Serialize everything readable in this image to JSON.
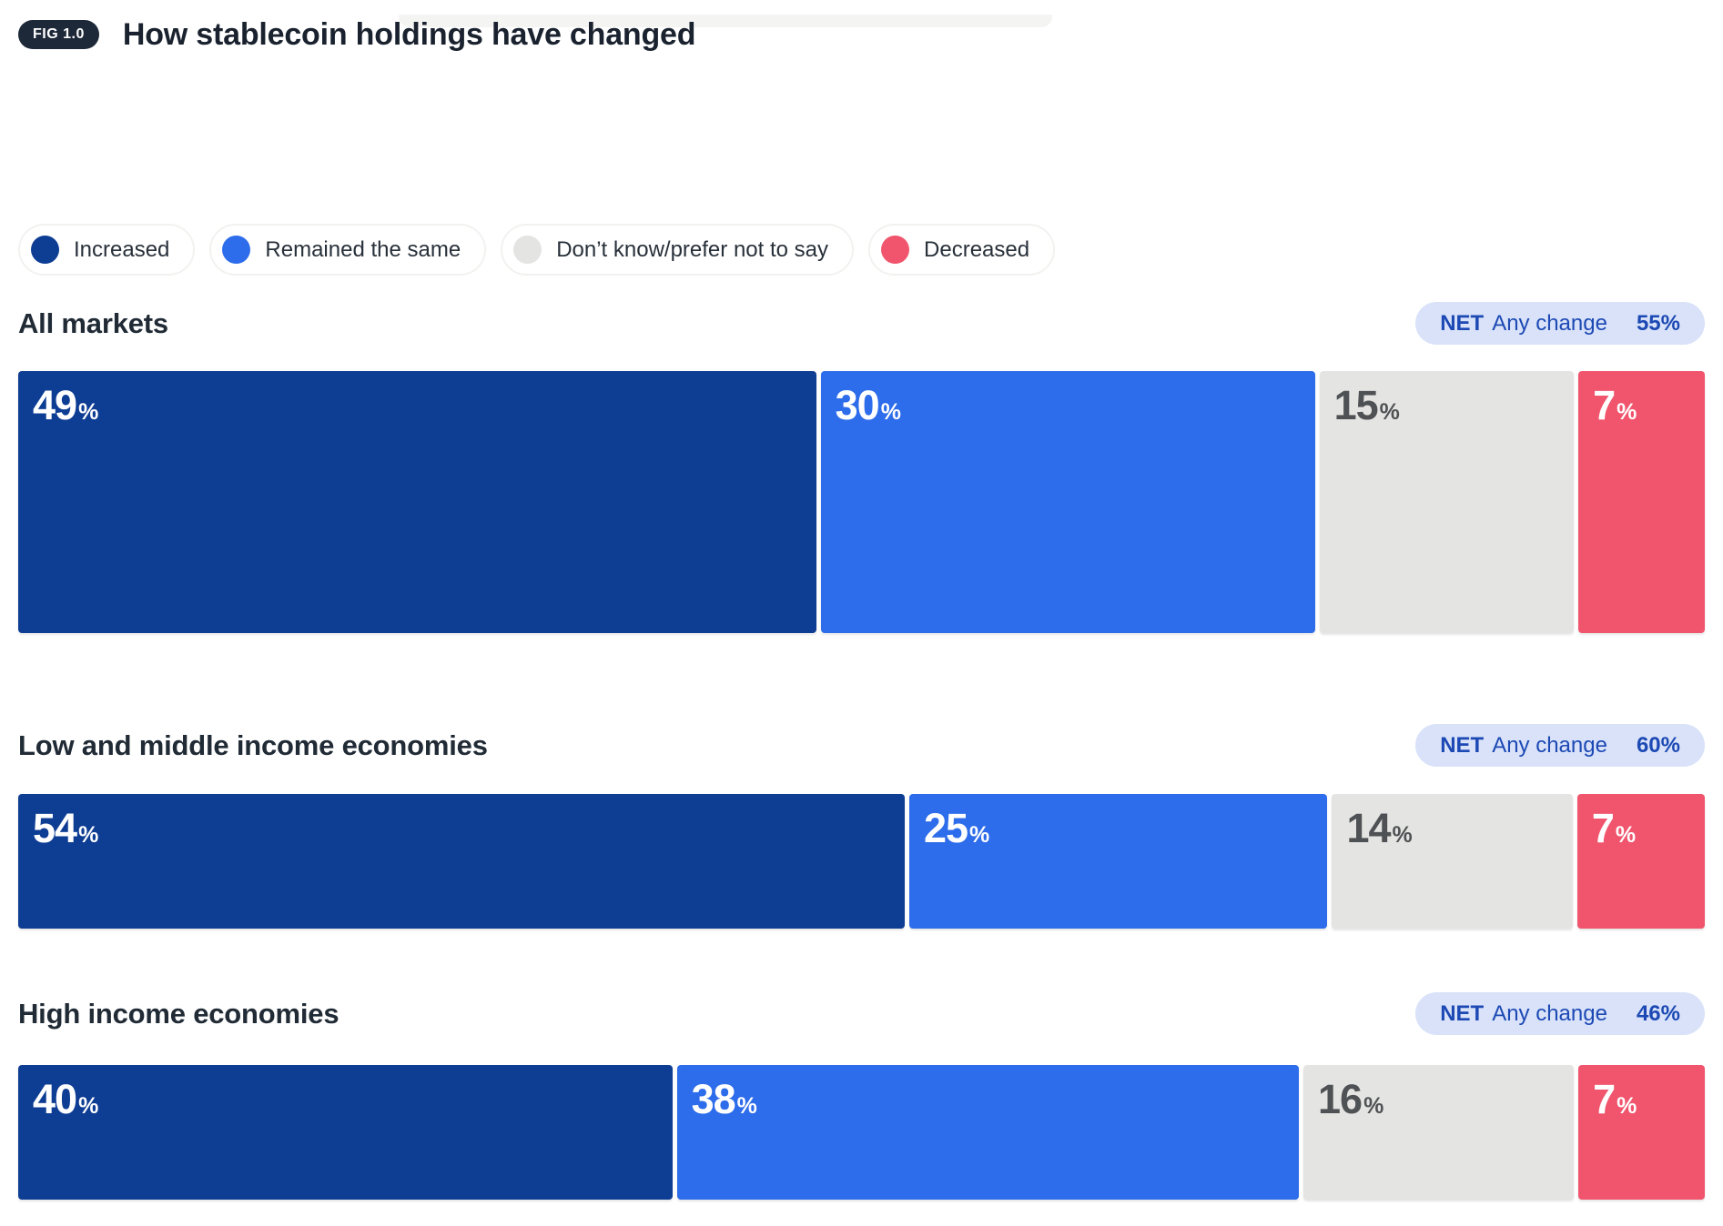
{
  "figure": {
    "badge": "FIG 1.0",
    "title": "How stablecoin holdings have changed"
  },
  "symbols": {
    "percent": "%"
  },
  "colors": {
    "increased": "#0e3d94",
    "remained_same": "#2d6cea",
    "dont_know": "#e4e4e2",
    "decreased": "#f0556d",
    "net_badge_bg": "#d9e2f9",
    "net_badge_text": "#1c49b4",
    "fig_badge_bg": "#1d2838",
    "heading_text": "#212b36"
  },
  "legend": {
    "items": [
      {
        "label": "Increased",
        "color": "#0e3d94"
      },
      {
        "label": "Remained the same",
        "color": "#2d6cea"
      },
      {
        "label": "Don’t know/prefer not to say",
        "color": "#e4e4e2"
      },
      {
        "label": "Decreased",
        "color": "#f0556d"
      }
    ]
  },
  "rows": [
    {
      "label": "All markets",
      "net_prefix": "NET",
      "net_label": "Any change",
      "net_value": "55%",
      "segments": [
        {
          "name": "Increased",
          "value": 49,
          "color": "#0e3d94"
        },
        {
          "name": "Remained the same",
          "value": 30,
          "color": "#2d6cea"
        },
        {
          "name": "Don’t know/prefer not to say",
          "value": 15,
          "color": "#e4e4e2"
        },
        {
          "name": "Decreased",
          "value": 7,
          "color": "#f0556d"
        }
      ]
    },
    {
      "label": "Low and middle income economies",
      "net_prefix": "NET",
      "net_label": "Any change",
      "net_value": "60%",
      "segments": [
        {
          "name": "Increased",
          "value": 54,
          "color": "#0e3d94"
        },
        {
          "name": "Remained the same",
          "value": 25,
          "color": "#2d6cea"
        },
        {
          "name": "Don’t know/prefer not to say",
          "value": 14,
          "color": "#e4e4e2"
        },
        {
          "name": "Decreased",
          "value": 7,
          "color": "#f0556d"
        }
      ]
    },
    {
      "label": "High income economies",
      "net_prefix": "NET",
      "net_label": "Any change",
      "net_value": "46%",
      "segments": [
        {
          "name": "Increased",
          "value": 40,
          "color": "#0e3d94"
        },
        {
          "name": "Remained the same",
          "value": 38,
          "color": "#2d6cea"
        },
        {
          "name": "Don’t know/prefer not to say",
          "value": 16,
          "color": "#e4e4e2"
        },
        {
          "name": "Decreased",
          "value": 7,
          "color": "#f0556d"
        }
      ]
    }
  ],
  "chart_data": {
    "type": "bar",
    "orientation": "horizontal",
    "stacked": true,
    "title": "How stablecoin holdings have changed",
    "unit": "%",
    "categories": [
      "All markets",
      "Low and middle income economies",
      "High income economies"
    ],
    "series": [
      {
        "name": "Increased",
        "values": [
          49,
          54,
          40
        ],
        "color": "#0e3d94"
      },
      {
        "name": "Remained the same",
        "values": [
          30,
          25,
          38
        ],
        "color": "#2d6cea"
      },
      {
        "name": "Don’t know/prefer not to say",
        "values": [
          15,
          14,
          16
        ],
        "color": "#e4e4e2"
      },
      {
        "name": "Decreased",
        "values": [
          7,
          7,
          7
        ],
        "color": "#f0556d"
      }
    ],
    "annotations": [
      {
        "label": "NET Any change",
        "values": [
          "55%",
          "60%",
          "46%"
        ]
      }
    ],
    "legend_position": "top",
    "grid": false,
    "xlim": [
      0,
      101
    ]
  }
}
